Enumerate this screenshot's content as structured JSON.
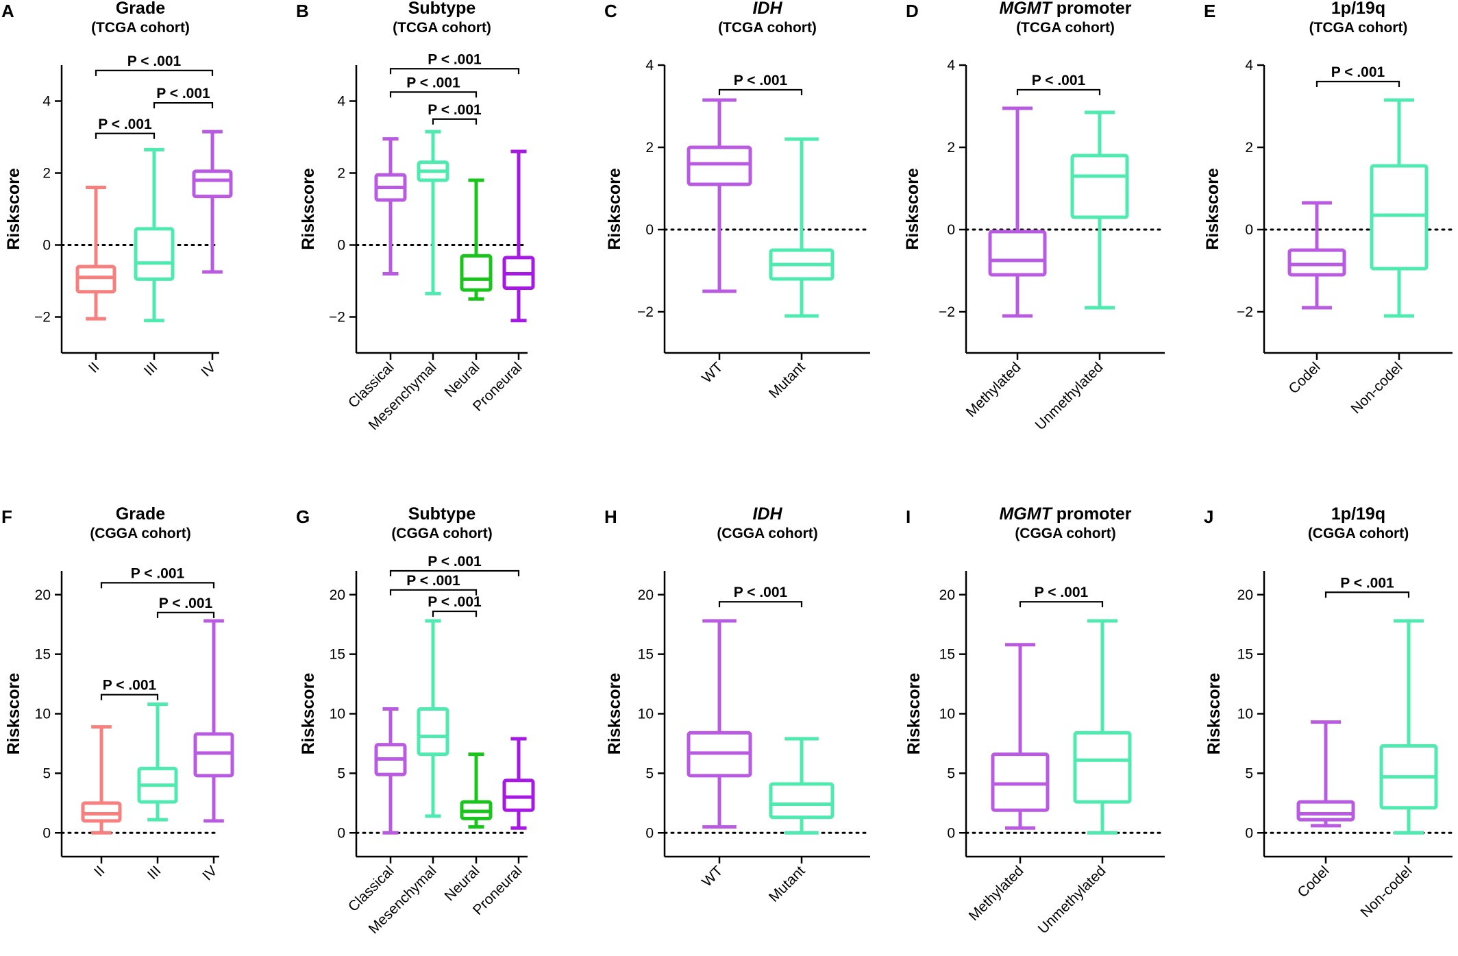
{
  "chart_data": [
    {
      "type": "box",
      "label": "A",
      "title": "Grade",
      "title_italic": false,
      "subtitle": "(TCGA cohort)",
      "ylabel": "Riskscore",
      "ylim": [
        -3,
        5
      ],
      "yticks": [
        -2,
        0,
        2,
        4
      ],
      "ytick_labels": [
        "−2",
        "0",
        "2",
        "4"
      ],
      "ref_line": 0,
      "categories": [
        "II",
        "III",
        "IV"
      ],
      "boxes": [
        {
          "min": -2.05,
          "q1": -1.3,
          "median": -0.9,
          "q3": -0.6,
          "max": 1.6,
          "color": "#F7807F"
        },
        {
          "min": -2.1,
          "q1": -0.95,
          "median": -0.5,
          "q3": 0.45,
          "max": 2.65,
          "color": "#4EEAB0"
        },
        {
          "min": -0.75,
          "q1": 1.35,
          "median": 1.8,
          "q3": 2.05,
          "max": 3.15,
          "color": "#B95BE0"
        }
      ],
      "comparisons": [
        {
          "from": 0,
          "to": 2,
          "level": 4.85,
          "text": "P < .001"
        },
        {
          "from": 1,
          "to": 2,
          "level": 3.95,
          "text": "P < .001"
        },
        {
          "from": 0,
          "to": 1,
          "level": 3.1,
          "text": "P < .001"
        }
      ]
    },
    {
      "type": "box",
      "label": "B",
      "title": "Subtype",
      "title_italic": false,
      "subtitle": "(TCGA cohort)",
      "ylabel": "Riskscore",
      "ylim": [
        -3,
        5
      ],
      "yticks": [
        -2,
        0,
        2,
        4
      ],
      "ytick_labels": [
        "−2",
        "0",
        "2",
        "4"
      ],
      "ref_line": 0,
      "categories": [
        "Classical",
        "Mesenchymal",
        "Neural",
        "Proneural"
      ],
      "boxes": [
        {
          "min": -0.8,
          "q1": 1.25,
          "median": 1.6,
          "q3": 1.95,
          "max": 2.95,
          "color": "#B95BE0"
        },
        {
          "min": -1.35,
          "q1": 1.8,
          "median": 2.05,
          "q3": 2.3,
          "max": 3.15,
          "color": "#4EEAB0"
        },
        {
          "min": -1.5,
          "q1": -1.25,
          "median": -0.95,
          "q3": -0.3,
          "max": 1.8,
          "color": "#19C41B"
        },
        {
          "min": -2.1,
          "q1": -1.2,
          "median": -0.8,
          "q3": -0.35,
          "max": 2.6,
          "color": "#A519E3"
        }
      ],
      "comparisons": [
        {
          "from": 0,
          "to": 3,
          "level": 4.9,
          "text": "P < .001"
        },
        {
          "from": 0,
          "to": 2,
          "level": 4.25,
          "text": "P < .001"
        },
        {
          "from": 1,
          "to": 2,
          "level": 3.5,
          "text": "P < .001"
        }
      ]
    },
    {
      "type": "box",
      "label": "C",
      "title": "IDH",
      "title_italic": true,
      "subtitle": "(TCGA cohort)",
      "ylabel": "Riskscore",
      "ylim": [
        -3,
        4
      ],
      "yticks": [
        -2,
        0,
        2,
        4
      ],
      "ytick_labels": [
        "−2",
        "0",
        "2",
        "4"
      ],
      "ref_line": 0,
      "categories": [
        "WT",
        "Mutant"
      ],
      "boxes": [
        {
          "min": -1.5,
          "q1": 1.1,
          "median": 1.6,
          "q3": 2.0,
          "max": 3.15,
          "color": "#B95BE0"
        },
        {
          "min": -2.1,
          "q1": -1.2,
          "median": -0.85,
          "q3": -0.5,
          "max": 2.2,
          "color": "#4EEAB0"
        }
      ],
      "comparisons": [
        {
          "from": 0,
          "to": 1,
          "level": 3.4,
          "text": "P < .001"
        }
      ]
    },
    {
      "type": "box",
      "label": "D",
      "title": "MGMT",
      "title_italic": true,
      "title_suffix": " promoter",
      "subtitle": "(TCGA cohort)",
      "ylabel": "Riskscore",
      "ylim": [
        -3,
        4
      ],
      "yticks": [
        -2,
        0,
        2,
        4
      ],
      "ytick_labels": [
        "−2",
        "0",
        "2",
        "4"
      ],
      "ref_line": 0,
      "categories": [
        "Methylated",
        "Unmethylated"
      ],
      "boxes": [
        {
          "min": -2.1,
          "q1": -1.1,
          "median": -0.75,
          "q3": -0.05,
          "max": 2.95,
          "color": "#B95BE0"
        },
        {
          "min": -1.9,
          "q1": 0.3,
          "median": 1.3,
          "q3": 1.8,
          "max": 2.85,
          "color": "#4EEAB0"
        }
      ],
      "comparisons": [
        {
          "from": 0,
          "to": 1,
          "level": 3.4,
          "text": "P < .001"
        }
      ]
    },
    {
      "type": "box",
      "label": "E",
      "title": "1p/19q",
      "title_italic": false,
      "subtitle": "(TCGA cohort)",
      "ylabel": "Riskscore",
      "ylim": [
        -3,
        4
      ],
      "yticks": [
        -2,
        0,
        2,
        4
      ],
      "ytick_labels": [
        "−2",
        "0",
        "2",
        "4"
      ],
      "ref_line": 0,
      "categories": [
        "Codel",
        "Non-codel"
      ],
      "boxes": [
        {
          "min": -1.9,
          "q1": -1.1,
          "median": -0.85,
          "q3": -0.5,
          "max": 0.65,
          "color": "#B95BE0"
        },
        {
          "min": -2.1,
          "q1": -0.95,
          "median": 0.35,
          "q3": 1.55,
          "max": 3.15,
          "color": "#4EEAB0"
        }
      ],
      "comparisons": [
        {
          "from": 0,
          "to": 1,
          "level": 3.6,
          "text": "P < .001"
        }
      ]
    },
    {
      "type": "box",
      "label": "F",
      "title": "Grade",
      "title_italic": false,
      "subtitle": "(CGGA cohort)",
      "ylabel": "Riskscore",
      "ylim": [
        -2,
        22
      ],
      "yticks": [
        0,
        5,
        10,
        15,
        20
      ],
      "ytick_labels": [
        "0",
        "5",
        "10",
        "15",
        "20"
      ],
      "ref_line": 0,
      "categories": [
        "II",
        "III",
        "IV"
      ],
      "boxes": [
        {
          "min": 0,
          "q1": 1.0,
          "median": 1.6,
          "q3": 2.5,
          "max": 8.9,
          "color": "#F7807F"
        },
        {
          "min": 1.1,
          "q1": 2.6,
          "median": 4.0,
          "q3": 5.4,
          "max": 10.8,
          "color": "#4EEAB0"
        },
        {
          "min": 1.0,
          "q1": 4.8,
          "median": 6.7,
          "q3": 8.3,
          "max": 17.8,
          "color": "#B95BE0"
        }
      ],
      "comparisons": [
        {
          "from": 0,
          "to": 2,
          "level": 21.0,
          "text": "P < .001"
        },
        {
          "from": 1,
          "to": 2,
          "level": 18.5,
          "text": "P < .001"
        },
        {
          "from": 0,
          "to": 1,
          "level": 11.6,
          "text": "P < .001"
        }
      ]
    },
    {
      "type": "box",
      "label": "G",
      "title": "Subtype",
      "title_italic": false,
      "subtitle": "(CGGA cohort)",
      "ylabel": "Riskscore",
      "ylim": [
        -2,
        22
      ],
      "yticks": [
        0,
        5,
        10,
        15,
        20
      ],
      "ytick_labels": [
        "0",
        "5",
        "10",
        "15",
        "20"
      ],
      "ref_line": 0,
      "categories": [
        "Classical",
        "Mesenchymal",
        "Neural",
        "Proneural"
      ],
      "boxes": [
        {
          "min": 0,
          "q1": 4.9,
          "median": 6.2,
          "q3": 7.4,
          "max": 10.4,
          "color": "#B95BE0"
        },
        {
          "min": 1.4,
          "q1": 6.6,
          "median": 8.1,
          "q3": 10.4,
          "max": 17.8,
          "color": "#4EEAB0"
        },
        {
          "min": 0.5,
          "q1": 1.2,
          "median": 1.8,
          "q3": 2.6,
          "max": 6.6,
          "color": "#19C41B"
        },
        {
          "min": 0.4,
          "q1": 1.9,
          "median": 3.0,
          "q3": 4.4,
          "max": 7.9,
          "color": "#A519E3"
        }
      ],
      "comparisons": [
        {
          "from": 0,
          "to": 3,
          "level": 22.0,
          "text": "P < .001"
        },
        {
          "from": 0,
          "to": 2,
          "level": 20.4,
          "text": "P < .001"
        },
        {
          "from": 1,
          "to": 2,
          "level": 18.6,
          "text": "P < .001"
        }
      ]
    },
    {
      "type": "box",
      "label": "H",
      "title": "IDH",
      "title_italic": true,
      "subtitle": "(CGGA cohort)",
      "ylabel": "Riskscore",
      "ylim": [
        -2,
        22
      ],
      "yticks": [
        0,
        5,
        10,
        15,
        20
      ],
      "ytick_labels": [
        "0",
        "5",
        "10",
        "15",
        "20"
      ],
      "ref_line": 0,
      "categories": [
        "WT",
        "Mutant"
      ],
      "boxes": [
        {
          "min": 0.5,
          "q1": 4.8,
          "median": 6.7,
          "q3": 8.4,
          "max": 17.8,
          "color": "#B95BE0"
        },
        {
          "min": 0,
          "q1": 1.3,
          "median": 2.4,
          "q3": 4.1,
          "max": 7.9,
          "color": "#4EEAB0"
        }
      ],
      "comparisons": [
        {
          "from": 0,
          "to": 1,
          "level": 19.4,
          "text": "P < .001"
        }
      ]
    },
    {
      "type": "box",
      "label": "I",
      "title": "MGMT",
      "title_italic": true,
      "title_suffix": " promoter",
      "subtitle": "(CGGA cohort)",
      "ylabel": "Riskscore",
      "ylim": [
        -2,
        22
      ],
      "yticks": [
        0,
        5,
        10,
        15,
        20
      ],
      "ytick_labels": [
        "0",
        "5",
        "10",
        "15",
        "20"
      ],
      "ref_line": 0,
      "categories": [
        "Methylated",
        "Unmethylated"
      ],
      "boxes": [
        {
          "min": 0.4,
          "q1": 1.9,
          "median": 4.1,
          "q3": 6.6,
          "max": 15.8,
          "color": "#B95BE0"
        },
        {
          "min": 0,
          "q1": 2.6,
          "median": 6.1,
          "q3": 8.4,
          "max": 17.8,
          "color": "#4EEAB0"
        }
      ],
      "comparisons": [
        {
          "from": 0,
          "to": 1,
          "level": 19.4,
          "text": "P < .001"
        }
      ]
    },
    {
      "type": "box",
      "label": "J",
      "title": "1p/19q",
      "title_italic": false,
      "subtitle": "(CGGA cohort)",
      "ylabel": "Riskscore",
      "ylim": [
        -2,
        22
      ],
      "yticks": [
        0,
        5,
        10,
        15,
        20
      ],
      "ytick_labels": [
        "0",
        "5",
        "10",
        "15",
        "20"
      ],
      "ref_line": 0,
      "categories": [
        "Codel",
        "Non-codel"
      ],
      "boxes": [
        {
          "min": 0.6,
          "q1": 1.1,
          "median": 1.6,
          "q3": 2.6,
          "max": 9.3,
          "color": "#B95BE0"
        },
        {
          "min": 0,
          "q1": 2.1,
          "median": 4.7,
          "q3": 7.3,
          "max": 17.8,
          "color": "#4EEAB0"
        }
      ],
      "comparisons": [
        {
          "from": 0,
          "to": 1,
          "level": 20.2,
          "text": "P < .001"
        }
      ]
    }
  ]
}
